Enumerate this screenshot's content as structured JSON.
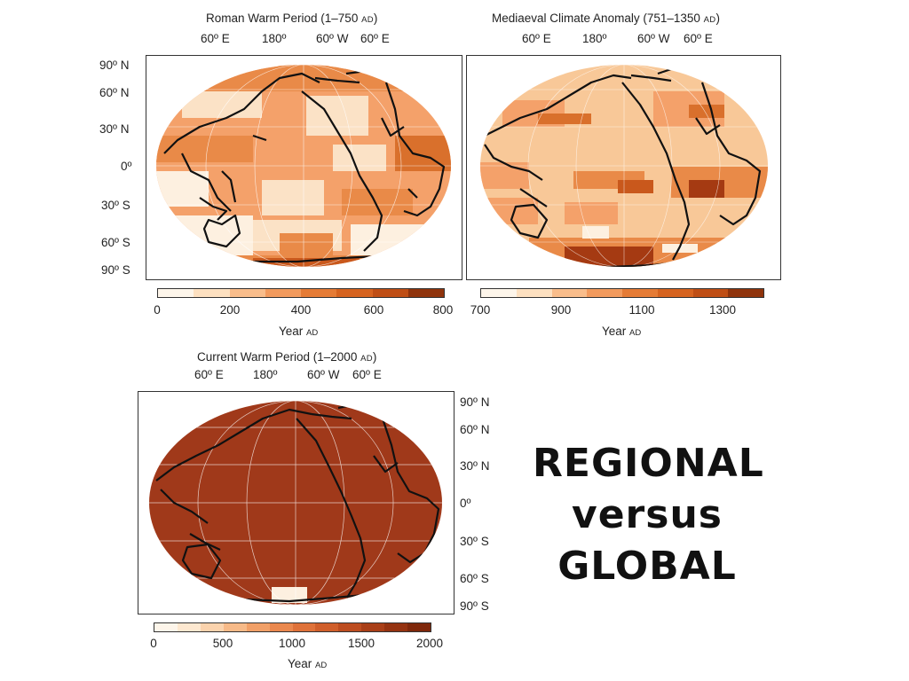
{
  "panels": {
    "roman": {
      "title": "Roman Warm Period (1–750 ",
      "title_era": "AD",
      "title_close": ")",
      "lon_labels": [
        "60º E",
        "180º",
        "60º W",
        "60º E"
      ],
      "lat_labels": [
        "90º N",
        "60º N",
        "30º N",
        "0º",
        "30º S",
        "60º S",
        "90º S"
      ],
      "colorbar_ticks": [
        "0",
        "200",
        "400",
        "600",
        "800"
      ],
      "year_label": "Year ",
      "year_era": "AD",
      "colorbar_colors": [
        "#fdf5ea",
        "#fde0c0",
        "#f9bd8b",
        "#f29a5d",
        "#e57b35",
        "#d6631f",
        "#bf4e15",
        "#8f330c"
      ]
    },
    "medieval": {
      "title": "Mediaeval Climate Anomaly (751–1350 ",
      "title_era": "AD",
      "title_close": ")",
      "lon_labels": [
        "60º E",
        "180º",
        "60º W",
        "60º E"
      ],
      "colorbar_ticks": [
        "700",
        "900",
        "1100",
        "1300"
      ],
      "year_label": "Year ",
      "year_era": "AD",
      "colorbar_colors": [
        "#fdf5ea",
        "#fde0c0",
        "#f9bd8b",
        "#f29a5d",
        "#e57b35",
        "#d6631f",
        "#bf4e15",
        "#8f330c"
      ]
    },
    "current": {
      "title": "Current Warm Period (1–2000 ",
      "title_era": "AD",
      "title_close": ")",
      "lon_labels": [
        "60º E",
        "180º",
        "60º W",
        "60º E"
      ],
      "lat_labels": [
        "90º N",
        "60º N",
        "30º N",
        "0º",
        "30º S",
        "60º S",
        "90º S"
      ],
      "colorbar_ticks": [
        "0",
        "500",
        "1000",
        "1500",
        "2000"
      ],
      "year_label": "Year ",
      "year_era": "AD",
      "colorbar_colors": [
        "#fdf5ea",
        "#fde8d0",
        "#fbd3ad",
        "#f7ba88",
        "#f1a068",
        "#ea884e",
        "#df723a",
        "#d05f2b",
        "#bd4d20",
        "#a93f18",
        "#953311",
        "#7f280b"
      ]
    }
  },
  "heading": {
    "line1": "REGIONAL",
    "line2": "versus",
    "line3": "GLOBAL"
  },
  "colors": {
    "map_light": "#fbe2c6",
    "map_mid": "#e98a48",
    "map_dark": "#a53a12",
    "current_fill": "#a0391a",
    "coast": "#111111"
  }
}
